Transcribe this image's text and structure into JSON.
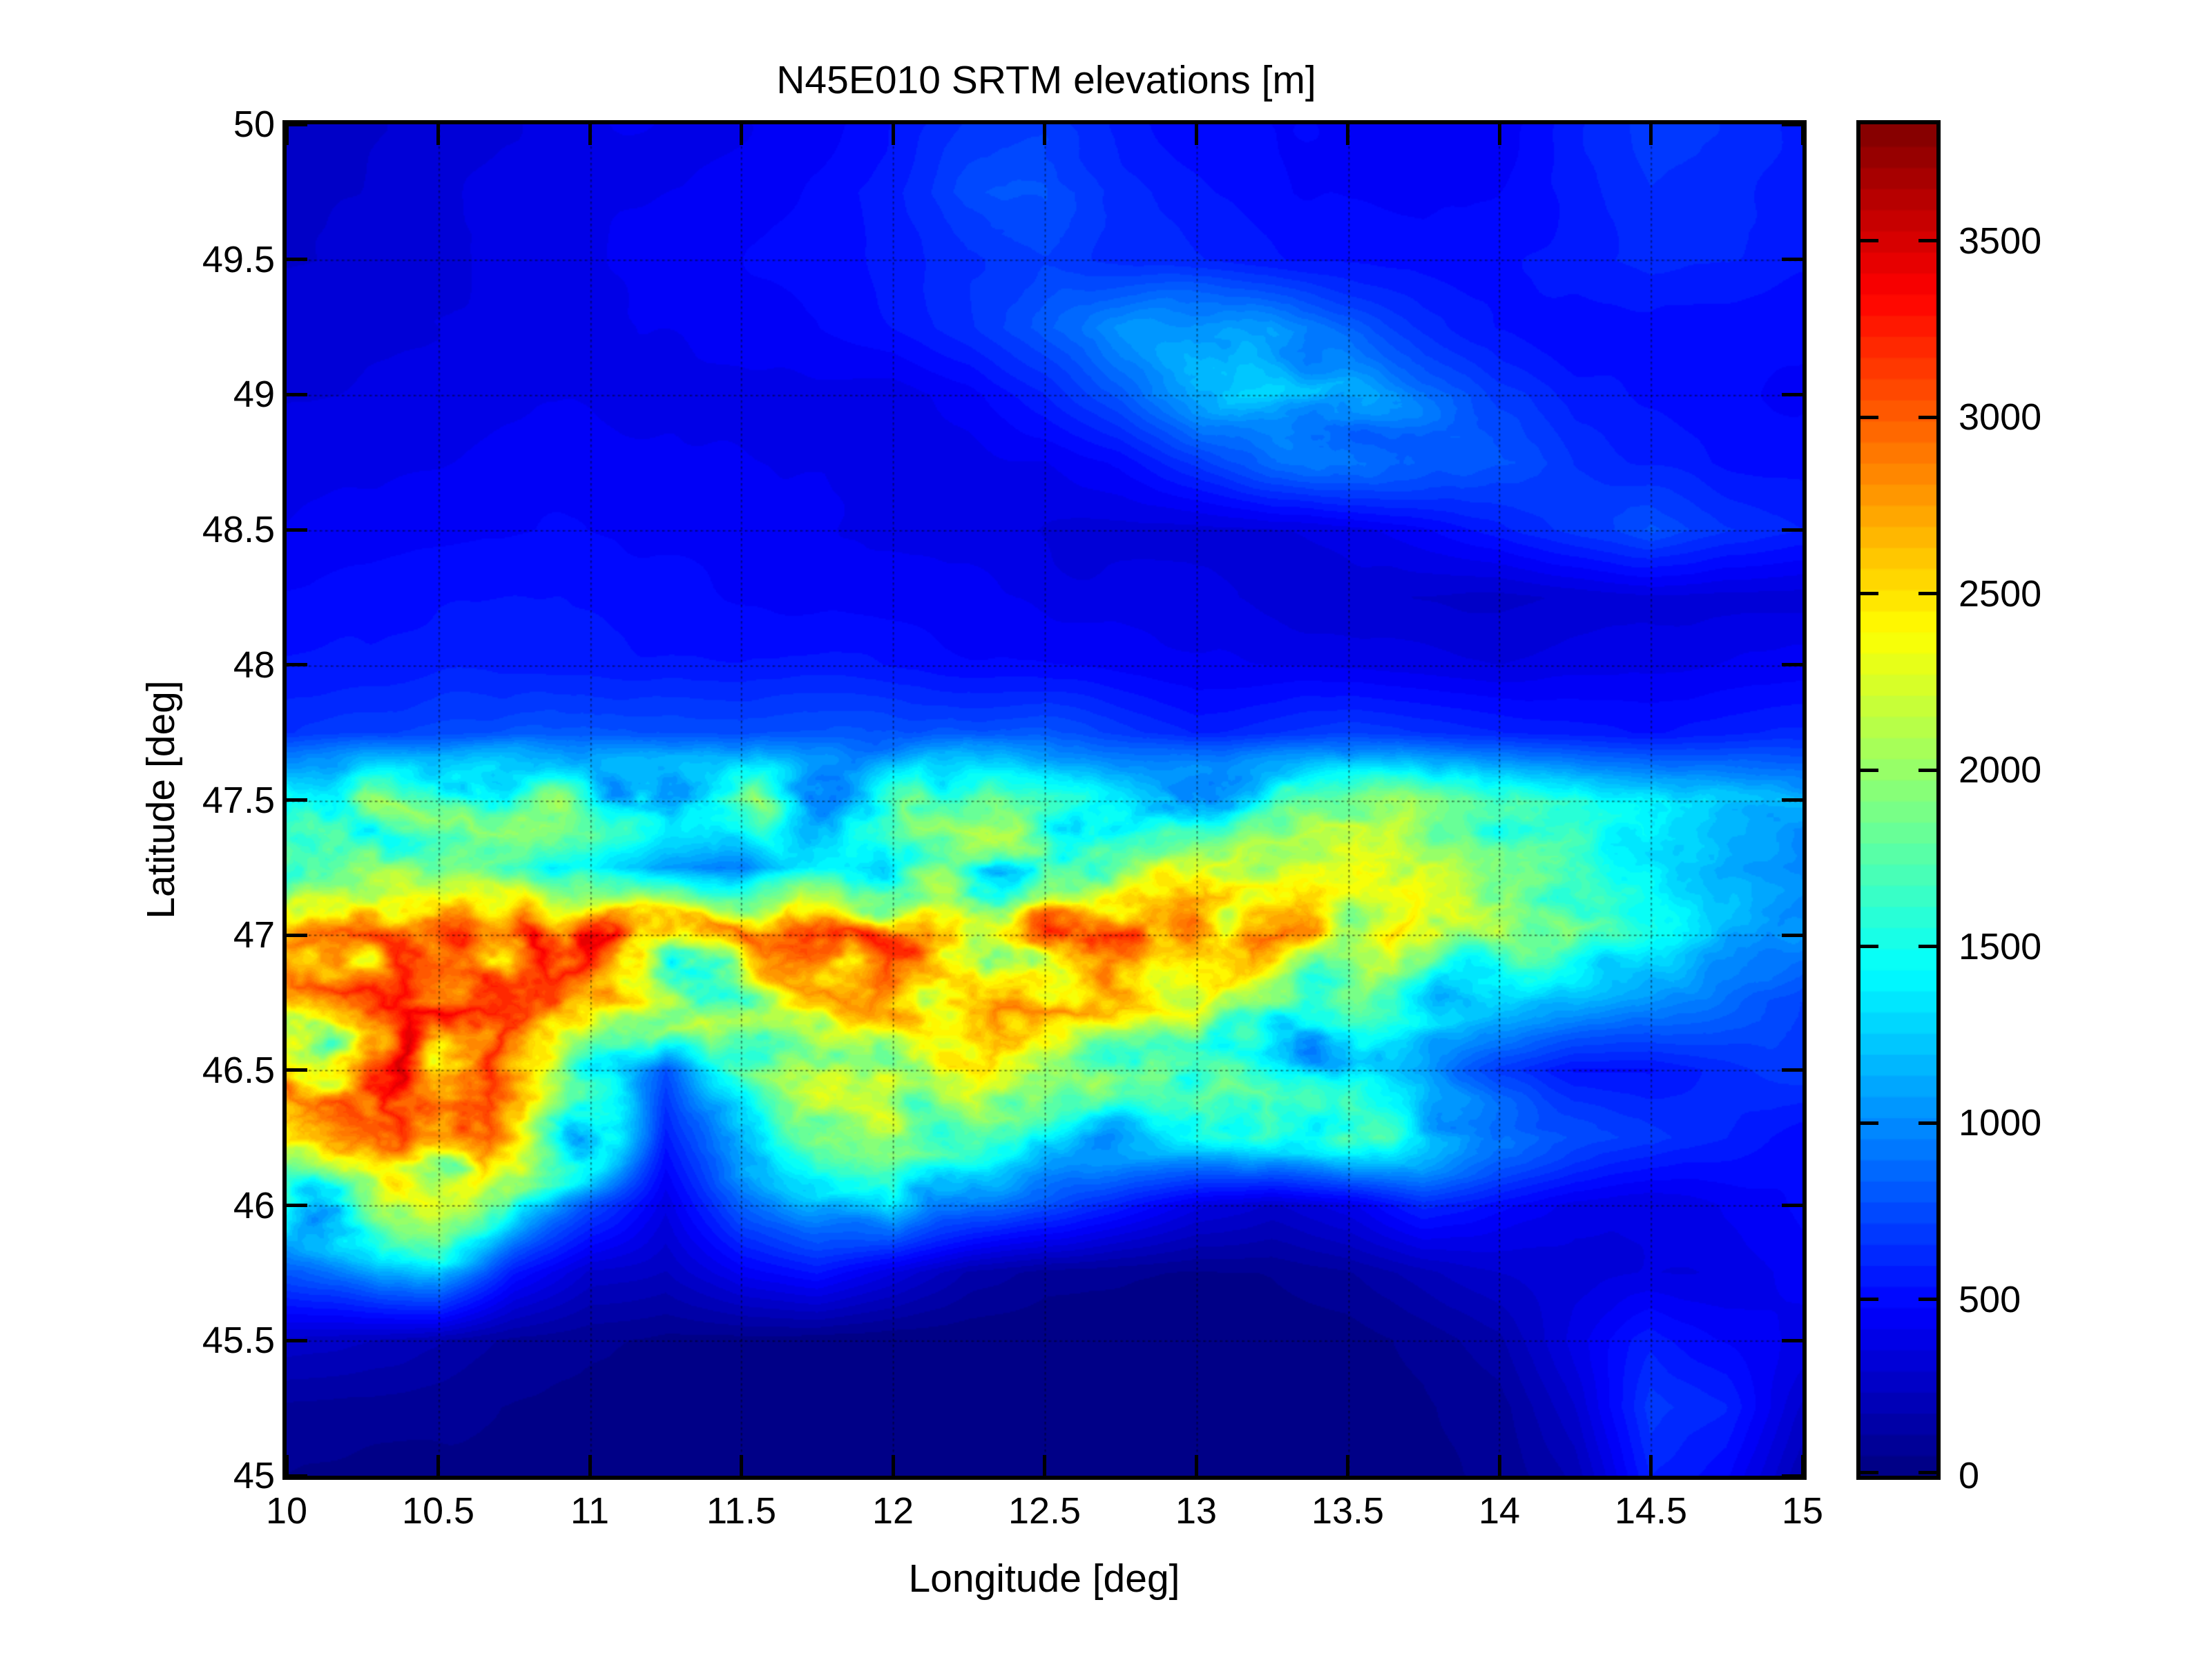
{
  "window": {
    "background": "#ffffff",
    "axis_color": "#000000"
  },
  "title": "N45E010 SRTM elevations [m]",
  "axes": {
    "x": {
      "label": "Longitude [deg]",
      "tick_labels": [
        "10",
        "10.5",
        "11",
        "11.5",
        "12",
        "12.5",
        "13",
        "13.5",
        "14",
        "14.5",
        "15"
      ],
      "tick_values": [
        10,
        10.5,
        11,
        11.5,
        12,
        12.5,
        13,
        13.5,
        14,
        14.5,
        15
      ],
      "range": [
        10,
        15
      ]
    },
    "y": {
      "label": "Latitude [deg]",
      "tick_labels": [
        "45",
        "45.5",
        "46",
        "46.5",
        "47",
        "47.5",
        "48",
        "48.5",
        "49",
        "49.5",
        "50"
      ],
      "tick_values": [
        45,
        45.5,
        46,
        46.5,
        47,
        47.5,
        48,
        48.5,
        49,
        49.5,
        50
      ],
      "range": [
        45,
        50
      ]
    }
  },
  "colorbar": {
    "tick_labels": [
      "0",
      "500",
      "1000",
      "1500",
      "2000",
      "2500",
      "3000",
      "3500"
    ],
    "tick_values": [
      0,
      500,
      1000,
      1500,
      2000,
      2500,
      3000,
      3500
    ],
    "vmin": 0,
    "vmax": 3830,
    "levels": 64,
    "colormap": "jet"
  },
  "chart_data": {
    "type": "heatmap",
    "title": "N45E010 SRTM elevations [m]",
    "xlabel": "Longitude [deg]",
    "ylabel": "Latitude [deg]",
    "units": "m",
    "colormap": "jet",
    "grid": "on",
    "legend": "colorbar-right",
    "x_range": [
      10,
      15
    ],
    "y_range": [
      45,
      50
    ],
    "value_range": [
      0,
      3830
    ],
    "lon": [
      10,
      10.25,
      10.5,
      10.75,
      11,
      11.25,
      11.5,
      11.75,
      12,
      12.25,
      12.5,
      12.75,
      13,
      13.25,
      13.5,
      13.75,
      14,
      14.25,
      14.5,
      14.75,
      15
    ],
    "lat": [
      50,
      49.75,
      49.5,
      49.25,
      49,
      48.75,
      48.5,
      48.25,
      48,
      47.75,
      47.5,
      47.25,
      47,
      46.75,
      46.5,
      46.25,
      46,
      45.75,
      45.5,
      45.25,
      45
    ],
    "elevation_m": [
      [
        330,
        320,
        350,
        380,
        420,
        450,
        480,
        500,
        560,
        650,
        700,
        620,
        560,
        520,
        490,
        460,
        430,
        550,
        620,
        590,
        550
      ],
      [
        300,
        310,
        340,
        370,
        400,
        430,
        460,
        520,
        600,
        750,
        800,
        650,
        570,
        530,
        500,
        480,
        500,
        560,
        620,
        600,
        560
      ],
      [
        290,
        300,
        330,
        360,
        390,
        420,
        450,
        500,
        560,
        650,
        700,
        620,
        580,
        560,
        540,
        520,
        540,
        580,
        640,
        620,
        580
      ],
      [
        310,
        320,
        340,
        360,
        380,
        400,
        430,
        460,
        520,
        600,
        750,
        900,
        1000,
        950,
        800,
        650,
        560,
        540,
        560,
        540,
        520
      ],
      [
        340,
        350,
        360,
        380,
        400,
        380,
        360,
        380,
        360,
        420,
        550,
        750,
        1000,
        1100,
        1050,
        900,
        700,
        600,
        560,
        520,
        500
      ],
      [
        380,
        390,
        400,
        420,
        430,
        420,
        400,
        380,
        360,
        380,
        400,
        480,
        650,
        900,
        1000,
        950,
        800,
        650,
        580,
        540,
        520
      ],
      [
        420,
        440,
        450,
        460,
        460,
        450,
        440,
        420,
        400,
        380,
        360,
        350,
        340,
        380,
        420,
        500,
        600,
        700,
        750,
        650,
        600
      ],
      [
        480,
        500,
        520,
        530,
        520,
        500,
        480,
        470,
        450,
        430,
        420,
        400,
        380,
        360,
        340,
        320,
        300,
        320,
        330,
        310,
        320
      ],
      [
        550,
        570,
        580,
        580,
        560,
        540,
        530,
        540,
        540,
        520,
        500,
        480,
        460,
        440,
        420,
        400,
        380,
        390,
        380,
        400,
        420
      ],
      [
        650,
        700,
        750,
        800,
        780,
        750,
        720,
        750,
        800,
        850,
        800,
        700,
        600,
        650,
        700,
        650,
        600,
        550,
        520,
        560,
        580
      ],
      [
        1400,
        1600,
        1500,
        1700,
        1600,
        1500,
        1600,
        1400,
        1500,
        1600,
        1400,
        1300,
        1400,
        1500,
        1600,
        1500,
        1400,
        1300,
        1200,
        1100,
        1000
      ],
      [
        1800,
        1900,
        1600,
        1400,
        1300,
        1000,
        900,
        1200,
        1500,
        1800,
        2000,
        1900,
        1800,
        1700,
        1800,
        1700,
        1500,
        1400,
        1200,
        1000,
        900
      ],
      [
        2200,
        2400,
        2500,
        2700,
        2800,
        2600,
        2400,
        2500,
        2600,
        2700,
        2800,
        2700,
        2500,
        2300,
        2100,
        1900,
        1700,
        1500,
        1200,
        1100,
        1000
      ],
      [
        2300,
        2500,
        2600,
        2500,
        2400,
        2200,
        2000,
        2200,
        2300,
        2400,
        2300,
        2100,
        1900,
        1700,
        1500,
        1300,
        1100,
        1000,
        900,
        800,
        700
      ],
      [
        2400,
        2700,
        2800,
        2400,
        1400,
        800,
        1500,
        2000,
        2200,
        2100,
        1900,
        1700,
        1600,
        1500,
        1300,
        1000,
        700,
        500,
        500,
        600,
        700
      ],
      [
        2000,
        2300,
        2600,
        2400,
        1800,
        600,
        1200,
        1600,
        1700,
        1500,
        1300,
        1200,
        1300,
        1400,
        1500,
        1300,
        1000,
        800,
        700,
        600,
        500
      ],
      [
        1500,
        1800,
        2000,
        1400,
        800,
        400,
        900,
        1100,
        1200,
        1000,
        800,
        600,
        400,
        300,
        400,
        600,
        500,
        400,
        400,
        450,
        500
      ],
      [
        800,
        1000,
        1200,
        600,
        300,
        250,
        500,
        600,
        400,
        200,
        100,
        80,
        60,
        60,
        100,
        200,
        300,
        350,
        400,
        400,
        450
      ],
      [
        300,
        250,
        200,
        120,
        80,
        60,
        50,
        40,
        30,
        25,
        20,
        15,
        10,
        10,
        20,
        60,
        150,
        400,
        600,
        500,
        400
      ],
      [
        120,
        100,
        80,
        60,
        40,
        30,
        25,
        20,
        15,
        10,
        8,
        5,
        5,
        5,
        10,
        30,
        80,
        300,
        700,
        600,
        300
      ],
      [
        80,
        60,
        50,
        40,
        30,
        25,
        20,
        15,
        10,
        8,
        5,
        3,
        2,
        2,
        5,
        20,
        60,
        200,
        600,
        500,
        200
      ]
    ]
  }
}
